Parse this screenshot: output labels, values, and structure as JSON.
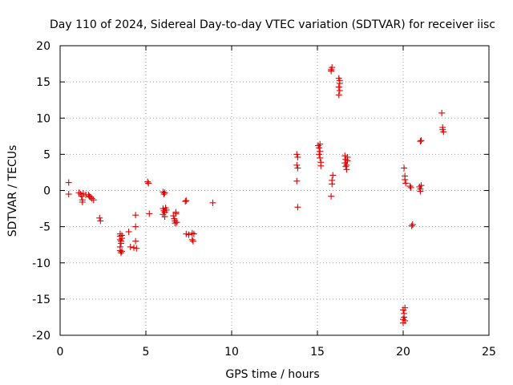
{
  "chart_data": {
    "type": "scatter",
    "title": "Day 110 of 2024, Sidereal Day-to-day VTEC variation (SDTVAR) for receiver iisc",
    "xlabel": "GPS time / hours",
    "ylabel": "SDTVAR / TECUs",
    "xlim": [
      0,
      25
    ],
    "ylim": [
      -20,
      20
    ],
    "xticks": [
      "0",
      "5",
      "10",
      "15",
      "20",
      "25"
    ],
    "yticks": [
      "20",
      "15",
      "10",
      "5",
      "0",
      "-5",
      "-10",
      "-15",
      "-20"
    ],
    "grid": true,
    "series": [
      {
        "name": "SDTVAR",
        "color": "#e00000",
        "marker": "+",
        "points": [
          [
            0.5,
            1.1
          ],
          [
            0.5,
            -0.5
          ],
          [
            1.1,
            -0.3
          ],
          [
            1.2,
            -0.5
          ],
          [
            1.25,
            -0.8
          ],
          [
            1.3,
            -1.3
          ],
          [
            1.3,
            -1.6
          ],
          [
            1.35,
            -0.4
          ],
          [
            1.5,
            -0.6
          ],
          [
            1.65,
            -0.6
          ],
          [
            1.7,
            -0.8
          ],
          [
            1.75,
            -0.9
          ],
          [
            1.85,
            -1.1
          ],
          [
            1.95,
            -1.3
          ],
          [
            2.3,
            -3.8
          ],
          [
            2.35,
            -4.2
          ],
          [
            3.5,
            -6.0
          ],
          [
            3.5,
            -6.3
          ],
          [
            3.5,
            -6.8
          ],
          [
            3.55,
            -7.0
          ],
          [
            3.55,
            -7.3
          ],
          [
            3.5,
            -7.8
          ],
          [
            3.5,
            -8.3
          ],
          [
            3.55,
            -8.6
          ],
          [
            3.6,
            -8.4
          ],
          [
            3.6,
            -6.2
          ],
          [
            3.6,
            -6.6
          ],
          [
            4.0,
            -5.7
          ],
          [
            4.1,
            -7.8
          ],
          [
            4.3,
            -7.9
          ],
          [
            4.4,
            -7.0
          ],
          [
            4.4,
            -3.4
          ],
          [
            4.4,
            -5.0
          ],
          [
            4.45,
            -8.0
          ],
          [
            5.1,
            1.2
          ],
          [
            5.15,
            1.0
          ],
          [
            5.2,
            -3.2
          ],
          [
            6.0,
            -0.2
          ],
          [
            6.05,
            -0.5
          ],
          [
            6.1,
            -0.3
          ],
          [
            6.0,
            -2.5
          ],
          [
            6.05,
            -2.8
          ],
          [
            6.1,
            -3.0
          ],
          [
            6.0,
            -3.3
          ],
          [
            6.1,
            -3.6
          ],
          [
            6.15,
            -2.4
          ],
          [
            6.2,
            -2.7
          ],
          [
            6.6,
            -3.5
          ],
          [
            6.65,
            -3.9
          ],
          [
            6.7,
            -4.2
          ],
          [
            6.7,
            -4.5
          ],
          [
            6.75,
            -3.0
          ],
          [
            6.75,
            -3.2
          ],
          [
            6.8,
            -4.4
          ],
          [
            7.3,
            -1.5
          ],
          [
            7.35,
            -1.4
          ],
          [
            7.35,
            -6.0
          ],
          [
            7.5,
            -6.1
          ],
          [
            7.7,
            -5.9
          ],
          [
            7.7,
            -6.8
          ],
          [
            7.75,
            -7.0
          ],
          [
            7.8,
            -6.0
          ],
          [
            8.9,
            -1.7
          ],
          [
            13.8,
            5.0
          ],
          [
            13.85,
            4.6
          ],
          [
            13.8,
            3.5
          ],
          [
            13.85,
            3.1
          ],
          [
            13.8,
            1.3
          ],
          [
            13.85,
            -2.3
          ],
          [
            15.05,
            6.2
          ],
          [
            15.1,
            5.9
          ],
          [
            15.15,
            6.4
          ],
          [
            15.1,
            5.0
          ],
          [
            15.15,
            4.5
          ],
          [
            15.2,
            3.9
          ],
          [
            15.2,
            3.4
          ],
          [
            15.15,
            5.4
          ],
          [
            15.8,
            16.7
          ],
          [
            15.85,
            17.0
          ],
          [
            15.8,
            16.5
          ],
          [
            15.9,
            2.1
          ],
          [
            15.85,
            1.4
          ],
          [
            15.85,
            0.9
          ],
          [
            15.8,
            -0.8
          ],
          [
            16.25,
            15.5
          ],
          [
            16.3,
            15.2
          ],
          [
            16.25,
            14.3
          ],
          [
            16.3,
            13.8
          ],
          [
            16.25,
            13.2
          ],
          [
            16.3,
            14.8
          ],
          [
            16.6,
            4.8
          ],
          [
            16.65,
            4.3
          ],
          [
            16.6,
            3.8
          ],
          [
            16.65,
            3.3
          ],
          [
            16.7,
            2.9
          ],
          [
            16.75,
            4.6
          ],
          [
            16.7,
            3.5
          ],
          [
            16.75,
            4.1
          ],
          [
            20.05,
            3.1
          ],
          [
            20.1,
            2.0
          ],
          [
            20.1,
            1.5
          ],
          [
            20.15,
            1.0
          ],
          [
            20.0,
            -16.5
          ],
          [
            20.05,
            -17.0
          ],
          [
            20.05,
            -17.5
          ],
          [
            20.1,
            -18.0
          ],
          [
            20.0,
            -18.3
          ],
          [
            20.1,
            -16.2
          ],
          [
            20.0,
            -17.8
          ],
          [
            20.4,
            0.6
          ],
          [
            20.45,
            0.4
          ],
          [
            20.5,
            -4.9
          ],
          [
            20.55,
            -4.7
          ],
          [
            20.95,
            0.5
          ],
          [
            21.0,
            0.2
          ],
          [
            21.0,
            -0.1
          ],
          [
            21.05,
            0.7
          ],
          [
            21.0,
            6.8
          ],
          [
            21.05,
            6.9
          ],
          [
            22.25,
            10.7
          ],
          [
            22.3,
            8.7
          ],
          [
            22.3,
            8.4
          ],
          [
            22.35,
            8.1
          ]
        ]
      }
    ]
  }
}
